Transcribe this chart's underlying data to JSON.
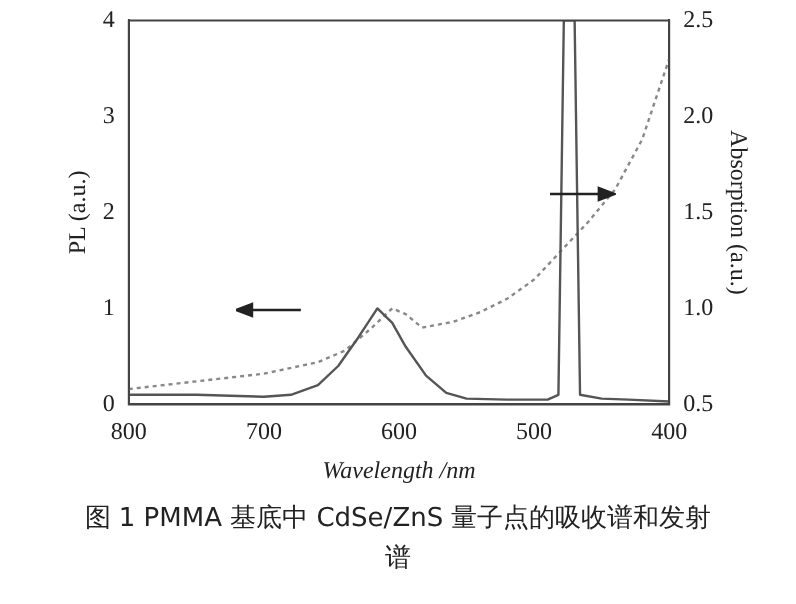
{
  "chart_data": {
    "type": "line",
    "title": "图 1 PMMA 基底中 CdSe/ZnS 量子点的吸收谱和发射谱",
    "xlabel": "Wavelength /nm",
    "ylabel": "PL (a.u.)",
    "y2label": "Absorption (a.u.)",
    "xlim": [
      800,
      400
    ],
    "xticks": [
      800,
      700,
      600,
      500,
      400
    ],
    "ylim": [
      0,
      4
    ],
    "yticks": [
      0,
      1,
      2,
      3,
      4
    ],
    "y2lim": [
      0.5,
      2.5
    ],
    "y2ticks": [
      {
        "value": 0.5,
        "label": "0.5"
      },
      {
        "value": 1,
        "label": "1.0"
      },
      {
        "value": 1.5,
        "label": "1.5"
      },
      {
        "value": 2,
        "label": "2.0"
      },
      {
        "value": 2.5,
        "label": "2.5"
      }
    ],
    "grid": false,
    "legend": false,
    "marker": "none",
    "series": [
      {
        "color": "#555555",
        "line_style": "solid",
        "x": [
          800,
          750,
          700,
          680,
          660,
          645,
          630,
          616,
          605,
          595,
          580,
          565,
          550,
          520,
          490,
          482,
          478,
          470,
          466,
          450,
          430,
          400
        ],
        "values": [
          0.1,
          0.1,
          0.08,
          0.1,
          0.2,
          0.4,
          0.7,
          1.0,
          0.85,
          0.6,
          0.3,
          0.12,
          0.06,
          0.05,
          0.05,
          0.1,
          4,
          4,
          0.1,
          0.06,
          0.05,
          0.03
        ]
      },
      {
        "color": "#888888",
        "line_style": "dotted",
        "axis": "y2",
        "x": [
          800,
          750,
          700,
          660,
          640,
          620,
          605,
          595,
          583,
          560,
          540,
          520,
          500,
          480,
          460,
          440,
          420,
          400
        ],
        "values": [
          0.58,
          0.62,
          0.66,
          0.72,
          0.78,
          0.9,
          1.0,
          0.97,
          0.9,
          0.93,
          0.98,
          1.05,
          1.15,
          1.3,
          1.45,
          1.62,
          1.88,
          2.3
        ]
      }
    ]
  }
}
